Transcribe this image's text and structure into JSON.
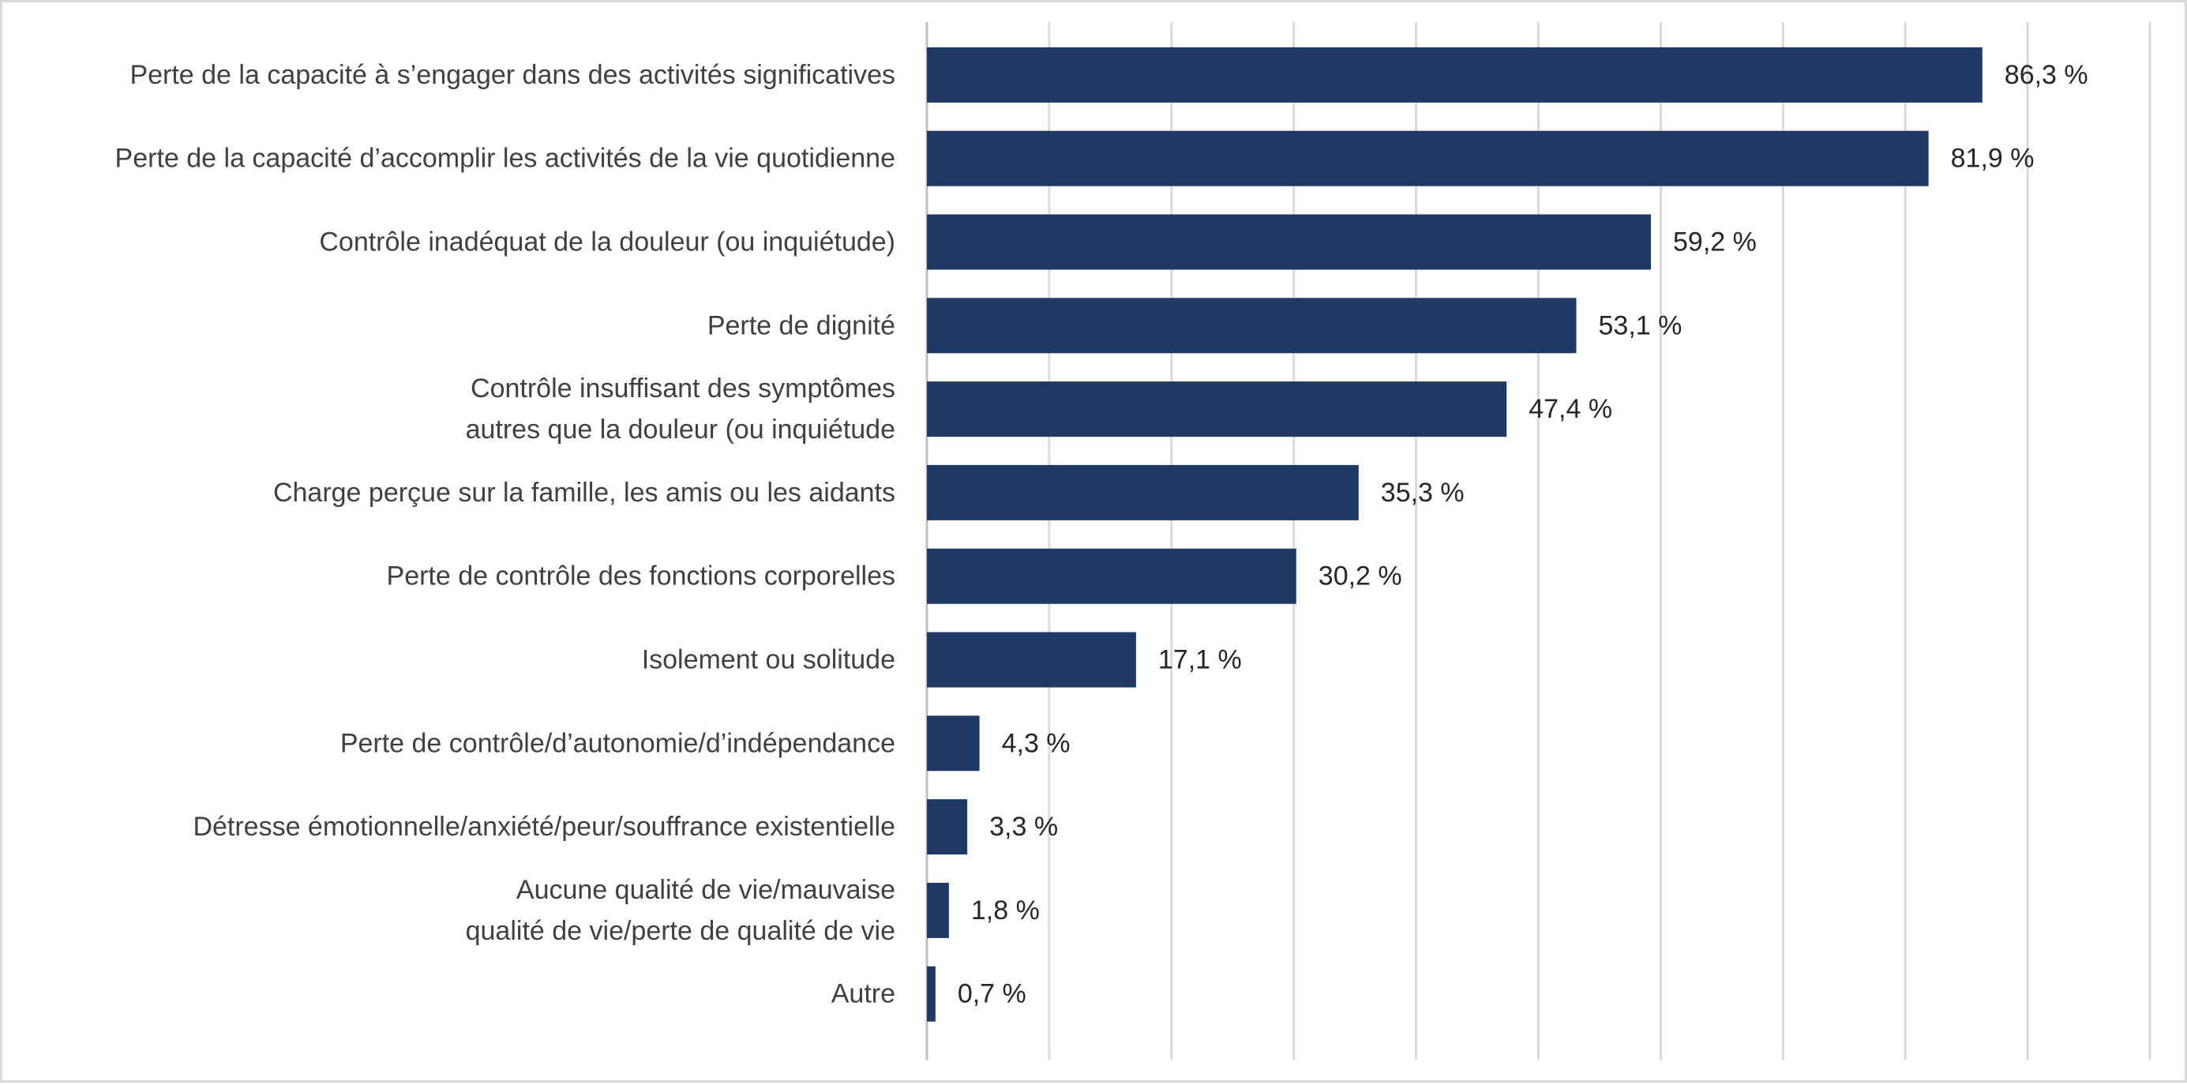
{
  "chart_data": {
    "type": "bar",
    "orientation": "horizontal",
    "categories": [
      [
        "Perte de la capacité à s’engager dans des activités significatives"
      ],
      [
        "Perte de la capacité d’accomplir les activités de la vie quotidienne"
      ],
      [
        "Contrôle inadéquat de la douleur (ou inquiétude)"
      ],
      [
        "Perte de dignité"
      ],
      [
        "Contrôle insuffisant des symptômes",
        "autres que la douleur (ou inquiétude"
      ],
      [
        "Charge perçue sur la famille, les amis ou les aidants"
      ],
      [
        "Perte de contrôle des fonctions corporelles"
      ],
      [
        "Isolement ou solitude"
      ],
      [
        "Perte de contrôle/d’autonomie/d’indépendance"
      ],
      [
        "Détresse émotionnelle/anxiété/peur/souffrance existentielle"
      ],
      [
        "Aucune qualité de vie/mauvaise",
        "qualité de vie/perte de qualité de vie"
      ],
      [
        "Autre"
      ]
    ],
    "values": [
      86.3,
      81.9,
      59.2,
      53.1,
      47.4,
      35.3,
      30.2,
      17.1,
      4.3,
      3.3,
      1.8,
      0.7
    ],
    "value_labels": [
      "86,3 %",
      "81,9 %",
      "59,2 %",
      "53,1 %",
      "47,4 %",
      "35,3 %",
      "30,2 %",
      "17,1 %",
      "4,3 %",
      "3,3 %",
      "1,8 %",
      "0,7 %"
    ],
    "xlim": [
      0,
      100
    ],
    "grid": true,
    "grid_step": 10,
    "legend": "none",
    "bar_color": "#1f3864"
  }
}
